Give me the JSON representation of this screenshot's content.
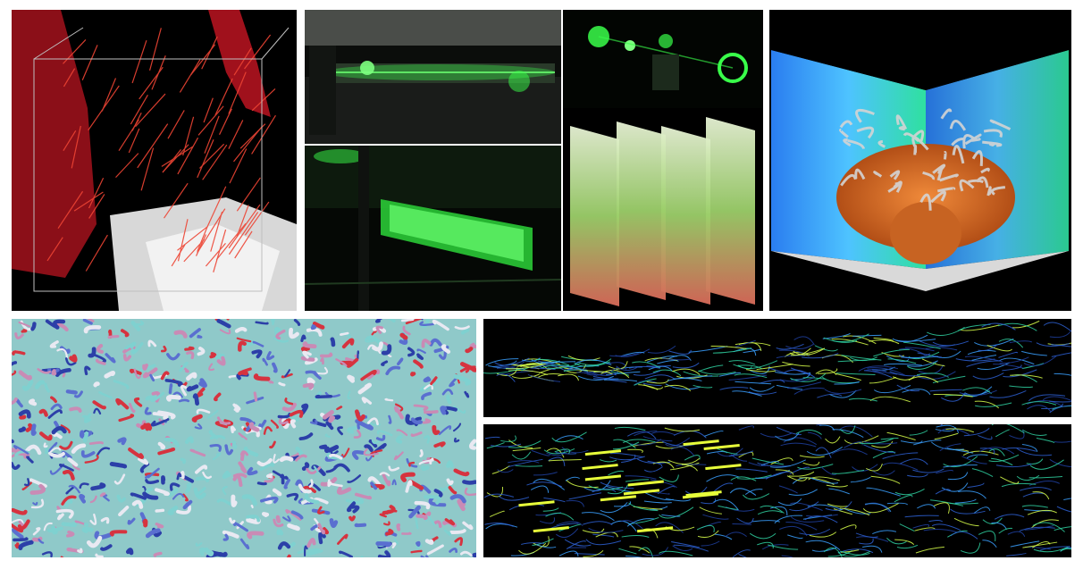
{
  "collage": {
    "panels": [
      {
        "id": "p1",
        "subject": "3d-vector-field-over-geometry"
      },
      {
        "id": "p2",
        "subject": "laser-lab-optics-table"
      },
      {
        "id": "p3",
        "subject": "green-laser-optics"
      },
      {
        "id": "p4",
        "subject": "laser-light-sheet"
      },
      {
        "id": "p5",
        "subject": "stacked-velocity-planes"
      },
      {
        "id": "p6",
        "subject": "plume-vortex-simulation-box"
      },
      {
        "id": "p7",
        "subject": "turbulent-vortex-tubes"
      },
      {
        "id": "p8",
        "subject": "jet-vortex-lines"
      },
      {
        "id": "p9",
        "subject": "wake-vortex-lines"
      }
    ]
  },
  "colors": {
    "background": "#ffffff",
    "laser_green": "#39ff4a",
    "vortex_red": "#d6333f",
    "vortex_blue": "#2c3fa8",
    "vortex_cyan": "#7fd1d0",
    "plume_orange": "#d9712a",
    "field_blue": "#2a7df0"
  }
}
